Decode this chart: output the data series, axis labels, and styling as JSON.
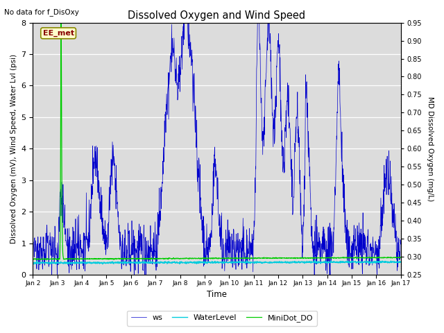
{
  "title": "Dissolved Oxygen and Wind Speed",
  "subtitle": "No data for f_DisOxy",
  "xlabel": "Time",
  "ylabel_left": "Dissolved Oxygen (mV), Wind Speed, Water Lvl (psi)",
  "ylabel_right": "MD Dissolved Oxygen (mg/L)",
  "ylim_left": [
    0.0,
    8.0
  ],
  "ylim_right": [
    0.25,
    0.95
  ],
  "bg_color": "#dcdcdc",
  "ws_color": "#0000cc",
  "waterlevel_color": "#00ccdd",
  "minidot_color": "#00cc00",
  "legend_labels": [
    "ws",
    "WaterLevel",
    "MiniDot_DO"
  ],
  "annotation_text": "EE_met",
  "annotation_color": "#880000",
  "annotation_bg": "#ffffcc",
  "annotation_border": "#888800"
}
